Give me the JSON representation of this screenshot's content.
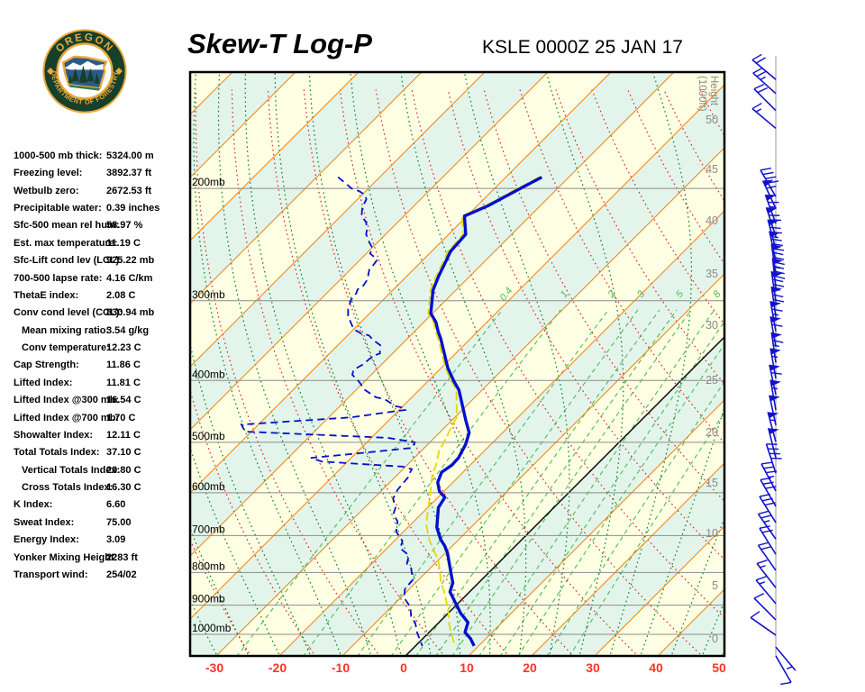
{
  "header": {
    "title": "Skew-T Log-P",
    "station_line": "KSLE 0000Z 25 JAN 17"
  },
  "logo": {
    "top_text": "OREGON",
    "bottom_text": "DEPARTMENT OF FORESTRY"
  },
  "indices": [
    {
      "label": "1000-500 mb thick:",
      "value": "5324.00 m",
      "indent": false
    },
    {
      "label": "Freezing level:",
      "value": "3892.37 ft",
      "indent": false
    },
    {
      "label": "Wetbulb zero:",
      "value": "2672.53 ft",
      "indent": false
    },
    {
      "label": "Precipitable water:",
      "value": "0.39 inches",
      "indent": false
    },
    {
      "label": "Sfc-500 mean rel hum:",
      "value": "58.97 %",
      "indent": false
    },
    {
      "label": "Est. max temperature:",
      "value": "11.19 C",
      "indent": false
    },
    {
      "label": "Sfc-Lift cond lev (LCL):",
      "value": "925.22 mb",
      "indent": false
    },
    {
      "label": "700-500 lapse rate:",
      "value": "4.16 C/km",
      "indent": false
    },
    {
      "label": "ThetaE index:",
      "value": "2.08 C",
      "indent": false
    },
    {
      "label": "Conv cond level (CCL):",
      "value": "830.94 mb",
      "indent": false
    },
    {
      "label": "Mean mixing ratio:",
      "value": "3.54 g/kg",
      "indent": true
    },
    {
      "label": "Conv temperature:",
      "value": "12.23 C",
      "indent": true
    },
    {
      "label": "Cap Strength:",
      "value": "11.86 C",
      "indent": false
    },
    {
      "label": "Lifted Index:",
      "value": "11.81 C",
      "indent": false
    },
    {
      "label": "Lifted Index @300 mb:",
      "value": "16.54 C",
      "indent": false
    },
    {
      "label": "Lifted Index @700 mb:",
      "value": "1.70 C",
      "indent": false
    },
    {
      "label": "Showalter Index:",
      "value": "12.11 C",
      "indent": false
    },
    {
      "label": "Total Totals Index:",
      "value": "37.10 C",
      "indent": false
    },
    {
      "label": "Vertical Totals Index:",
      "value": "20.80 C",
      "indent": true
    },
    {
      "label": "Cross Totals Index:",
      "value": "16.30 C",
      "indent": true
    },
    {
      "label": "K Index:",
      "value": "6.60",
      "indent": false
    },
    {
      "label": "Sweat Index:",
      "value": "75.00",
      "indent": false
    },
    {
      "label": "Energy Index:",
      "value": "3.09",
      "indent": false
    },
    {
      "label": "Yonker Mixing Height:",
      "value": "2283 ft",
      "indent": false
    },
    {
      "label": "Transport wind:",
      "value": "254/02",
      "indent": false
    }
  ],
  "chart_data": {
    "type": "skewt-log-p",
    "pressure_lines_mb": [
      200,
      300,
      400,
      500,
      600,
      700,
      800,
      900,
      1000
    ],
    "pressure_label_suffix": "mb",
    "temp_axis_c": [
      -30,
      -20,
      -10,
      0,
      10,
      20,
      30,
      40,
      50
    ],
    "temp_axis_range_c": [
      -30,
      50
    ],
    "height_axis_title_lines": [
      "Height",
      "(1000ft)"
    ],
    "height_ticks_kft": [
      0,
      5,
      10,
      15,
      20,
      25,
      30,
      35,
      40,
      45,
      50
    ],
    "isotherm_step_c": 10,
    "zero_isotherm_c": 0,
    "dry_adiabat_theta_c": [
      -60,
      150,
      10
    ],
    "moist_adiabat_thetaw_c": [
      -40,
      45,
      5
    ],
    "mixing_ratio_lines_gkg": [
      0.4,
      1,
      2,
      3,
      4,
      5,
      6,
      8,
      10,
      12,
      16,
      20
    ],
    "mixing_ratio_labels_gkg": [
      0.4,
      1,
      2,
      3,
      5,
      8
    ],
    "temperature_profile_p_t": [
      [
        192,
        -54.3
      ],
      [
        200,
        -55.9
      ],
      [
        213,
        -58.3
      ],
      [
        221,
        -60.4
      ],
      [
        236,
        -57.3
      ],
      [
        251,
        -57.0
      ],
      [
        262,
        -56.0
      ],
      [
        274,
        -55.0
      ],
      [
        289,
        -53.6
      ],
      [
        300,
        -52.1
      ],
      [
        314,
        -50.3
      ],
      [
        324,
        -48.1
      ],
      [
        335,
        -46.3
      ],
      [
        344,
        -44.7
      ],
      [
        382,
        -39.0
      ],
      [
        401,
        -35.9
      ],
      [
        414,
        -33.7
      ],
      [
        461,
        -27.9
      ],
      [
        483,
        -25.3
      ],
      [
        504,
        -24.0
      ],
      [
        529,
        -23.0
      ],
      [
        543,
        -22.9
      ],
      [
        557,
        -23.4
      ],
      [
        578,
        -22.4
      ],
      [
        597,
        -20.7
      ],
      [
        610,
        -18.9
      ],
      [
        633,
        -18.3
      ],
      [
        680,
        -15.4
      ],
      [
        710,
        -12.9
      ],
      [
        726,
        -11.3
      ],
      [
        745,
        -9.7
      ],
      [
        816,
        -5.0
      ],
      [
        830,
        -4.1
      ],
      [
        858,
        -3.1
      ],
      [
        927,
        2.0
      ],
      [
        958,
        4.6
      ],
      [
        993,
        5.7
      ],
      [
        1016,
        7.6
      ],
      [
        1043,
        9.3
      ]
    ],
    "dewpoint_profile_p_t": [
      [
        192,
        -86.6
      ],
      [
        197,
        -84.1
      ],
      [
        200,
        -82.7
      ],
      [
        202,
        -81.0
      ],
      [
        205,
        -79.4
      ],
      [
        208,
        -78.6
      ],
      [
        214,
        -78.0
      ],
      [
        221,
        -76.7
      ],
      [
        226,
        -75.0
      ],
      [
        232,
        -73.7
      ],
      [
        236,
        -73.1
      ],
      [
        243,
        -71.3
      ],
      [
        248,
        -69.9
      ],
      [
        253,
        -69.4
      ],
      [
        257,
        -67.9
      ],
      [
        259,
        -67.3
      ],
      [
        263,
        -67.1
      ],
      [
        268,
        -67.0
      ],
      [
        278,
        -65.7
      ],
      [
        284,
        -65.4
      ],
      [
        288,
        -65.7
      ],
      [
        292,
        -65.3
      ],
      [
        299,
        -65.1
      ],
      [
        309,
        -64.1
      ],
      [
        317,
        -63.0
      ],
      [
        332,
        -60.1
      ],
      [
        337,
        -58.4
      ],
      [
        340,
        -56.6
      ],
      [
        346,
        -55.1
      ],
      [
        352,
        -53.3
      ],
      [
        363,
        -52.0
      ],
      [
        366,
        -52.7
      ],
      [
        378,
        -53.0
      ],
      [
        385,
        -53.6
      ],
      [
        392,
        -53.0
      ],
      [
        401,
        -51.0
      ],
      [
        414,
        -48.6
      ],
      [
        425,
        -45.7
      ],
      [
        428,
        -44.0
      ],
      [
        439,
        -41.1
      ],
      [
        442,
        -39.3
      ],
      [
        445,
        -39.0
      ],
      [
        448,
        -41.1
      ],
      [
        457,
        -46.4
      ],
      [
        469,
        -62.7
      ],
      [
        481,
        -61.0
      ],
      [
        492,
        -37.4
      ],
      [
        500,
        -32.4
      ],
      [
        510,
        -31.9
      ],
      [
        520,
        -39.3
      ],
      [
        529,
        -46.4
      ],
      [
        536,
        -44.1
      ],
      [
        546,
        -30.4
      ],
      [
        551,
        -28.6
      ],
      [
        559,
        -28.3
      ],
      [
        568,
        -27.9
      ],
      [
        593,
        -27.6
      ],
      [
        613,
        -26.9
      ],
      [
        633,
        -25.1
      ],
      [
        648,
        -24.4
      ],
      [
        665,
        -22.6
      ],
      [
        691,
        -21.1
      ],
      [
        714,
        -18.7
      ],
      [
        733,
        -17.9
      ],
      [
        752,
        -15.4
      ],
      [
        775,
        -14.4
      ],
      [
        788,
        -13.0
      ],
      [
        822,
        -10.9
      ],
      [
        849,
        -10.7
      ],
      [
        877,
        -9.4
      ],
      [
        906,
        -7.0
      ],
      [
        937,
        -5.4
      ],
      [
        961,
        -3.6
      ],
      [
        993,
        -1.9
      ],
      [
        1023,
        -0.1
      ],
      [
        1043,
        1.1
      ]
    ],
    "wetbulb_profile_p_t": [
      [
        192,
        -54.7
      ],
      [
        200,
        -56.3
      ],
      [
        213,
        -58.7
      ],
      [
        221,
        -60.8
      ],
      [
        236,
        -57.7
      ],
      [
        251,
        -57.4
      ],
      [
        262,
        -56.4
      ],
      [
        274,
        -55.4
      ],
      [
        289,
        -54.0
      ],
      [
        300,
        -52.5
      ],
      [
        314,
        -50.7
      ],
      [
        324,
        -48.5
      ],
      [
        335,
        -46.7
      ],
      [
        344,
        -45.1
      ],
      [
        382,
        -39.4
      ],
      [
        401,
        -36.3
      ],
      [
        414,
        -34.1
      ],
      [
        457,
        -29.7
      ],
      [
        474,
        -29.0
      ],
      [
        488,
        -28.3
      ],
      [
        517,
        -27.1
      ],
      [
        543,
        -25.4
      ],
      [
        559,
        -24.7
      ],
      [
        605,
        -21.6
      ],
      [
        648,
        -19.0
      ],
      [
        676,
        -17.3
      ],
      [
        710,
        -14.7
      ],
      [
        738,
        -12.3
      ],
      [
        765,
        -10.0
      ],
      [
        796,
        -8.0
      ],
      [
        830,
        -6.0
      ],
      [
        858,
        -4.0
      ],
      [
        906,
        -1.1
      ],
      [
        937,
        0.6
      ],
      [
        968,
        2.1
      ],
      [
        1000,
        3.9
      ],
      [
        1026,
        5.3
      ],
      [
        1043,
        6.7
      ]
    ],
    "wind_barbs_p_dir_kt": [
      [
        135,
        -50,
        20
      ],
      [
        142,
        -48,
        25
      ],
      [
        151,
        -45,
        20
      ],
      [
        161,
        -50,
        15
      ],
      [
        206,
        -30,
        45
      ],
      [
        215,
        -25,
        55
      ],
      [
        227,
        -20,
        65
      ],
      [
        238,
        -18,
        70
      ],
      [
        249,
        -15,
        75
      ],
      [
        260,
        -12,
        80
      ],
      [
        273,
        -8,
        85
      ],
      [
        287,
        -6,
        80
      ],
      [
        301,
        -8,
        75
      ],
      [
        318,
        -8,
        70
      ],
      [
        335,
        -10,
        65
      ],
      [
        354,
        -10,
        60
      ],
      [
        375,
        -8,
        65
      ],
      [
        397,
        -10,
        55
      ],
      [
        421,
        -12,
        60
      ],
      [
        445,
        -10,
        55
      ],
      [
        470,
        -12,
        50
      ],
      [
        499,
        -15,
        55
      ],
      [
        529,
        -14,
        50
      ],
      [
        559,
        -18,
        40
      ],
      [
        596,
        -28,
        35
      ],
      [
        630,
        -30,
        30
      ],
      [
        668,
        -32,
        30
      ],
      [
        709,
        -35,
        25
      ],
      [
        749,
        -32,
        20
      ],
      [
        794,
        -35,
        20
      ],
      [
        845,
        -38,
        15
      ],
      [
        895,
        -40,
        15
      ],
      [
        949,
        -45,
        10
      ],
      [
        1003,
        -55,
        10
      ],
      [
        1047,
        140,
        5
      ],
      [
        1081,
        150,
        10
      ]
    ],
    "colors": {
      "band_yellow": "#FFFFE3",
      "band_green": "#E3F5EA",
      "isotherm_orange": "#F08818",
      "zero_isotherm_black": "#000000",
      "dry_adiabat_red": "#D42A2A",
      "moist_adiabat_green": "#0B7A2B",
      "mixing_ratio_green": "#4CBB5C",
      "pressure_line_gray": "#8C8C8C",
      "profile_blue": "#0010CC",
      "wetbulb_yellow": "#E6D800",
      "axis_label_red": "#FF3322",
      "height_label_gray": "#8A8A8A",
      "wind_barb_blue": "#1212CC",
      "logo_green": "#16402A",
      "logo_gold": "#E9A83A"
    }
  }
}
